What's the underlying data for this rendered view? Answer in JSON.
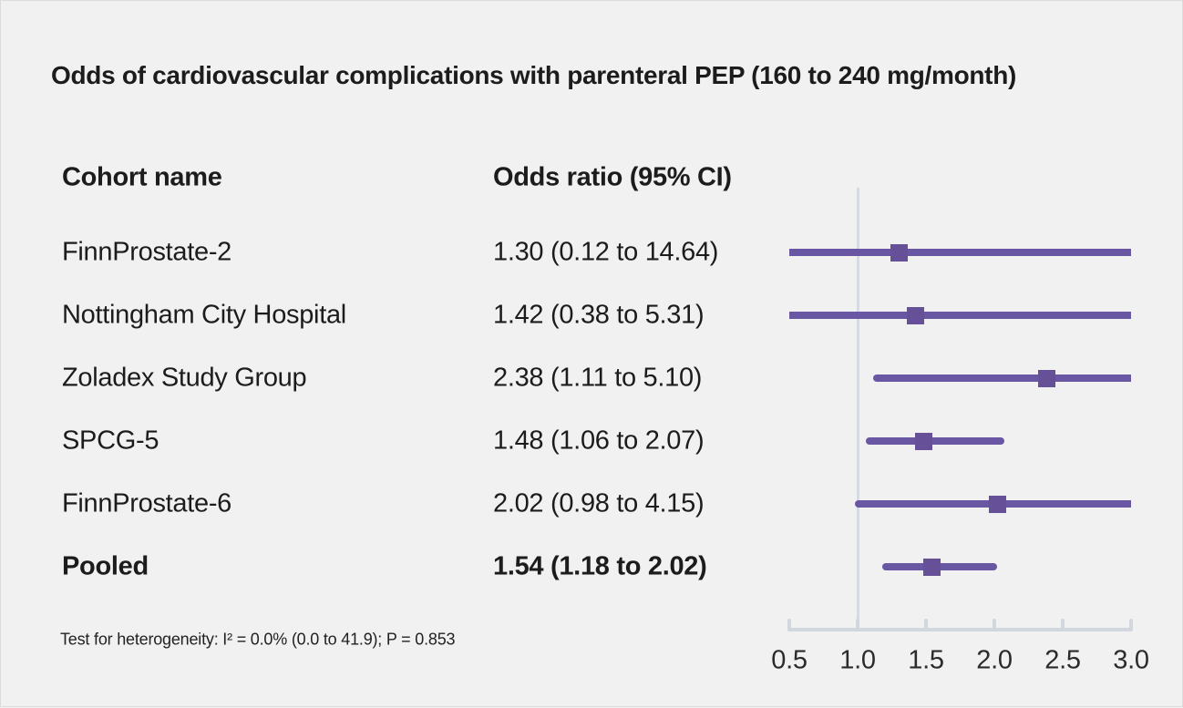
{
  "title": "Odds of cardiovascular complications with parenteral PEP (160 to 240 mg/month)",
  "columns": {
    "cohort": "Cohort name",
    "odds": "Odds ratio (95% CI)"
  },
  "footnote": "Test for heterogeneity: I² = 0.0% (0.0 to 41.9); P = 0.853",
  "chart_data": {
    "type": "forest",
    "title": "Odds of cardiovascular complications with parenteral PEP (160 to 240 mg/month)",
    "studies": [
      {
        "label": "FinnProstate-2",
        "or": 1.3,
        "ci_low": 0.12,
        "ci_high": 14.64,
        "text": "1.30 (0.12 to 14.64)",
        "pooled": false
      },
      {
        "label": "Nottingham City Hospital",
        "or": 1.42,
        "ci_low": 0.38,
        "ci_high": 5.31,
        "text": "1.42 (0.38 to 5.31)",
        "pooled": false
      },
      {
        "label": "Zoladex Study Group",
        "or": 2.38,
        "ci_low": 1.11,
        "ci_high": 5.1,
        "text": "2.38 (1.11 to 5.10)",
        "pooled": false
      },
      {
        "label": "SPCG-5",
        "or": 1.48,
        "ci_low": 1.06,
        "ci_high": 2.07,
        "text": "1.48 (1.06 to 2.07)",
        "pooled": false
      },
      {
        "label": "FinnProstate-6",
        "or": 2.02,
        "ci_low": 0.98,
        "ci_high": 4.15,
        "text": "2.02 (0.98 to 4.15)",
        "pooled": false
      },
      {
        "label": "Pooled",
        "or": 1.54,
        "ci_low": 1.18,
        "ci_high": 2.02,
        "text": "1.54 (1.18 to 2.02)",
        "pooled": true
      }
    ],
    "xlim": [
      0.5,
      3.0
    ],
    "x_ticks": [
      0.5,
      1.0,
      1.5,
      2.0,
      2.5,
      3.0
    ],
    "x_tick_labels": [
      "0.5",
      "1.0",
      "1.5",
      "2.0",
      "2.5",
      "3.0"
    ],
    "reference_line": 1.0,
    "grid": false,
    "legend": false,
    "colors": {
      "accent": "#6a57a3",
      "marker": "#665199",
      "axis": "#d2d7de",
      "reference_line": "#d7dae3",
      "background": "#f2f1f2"
    }
  }
}
